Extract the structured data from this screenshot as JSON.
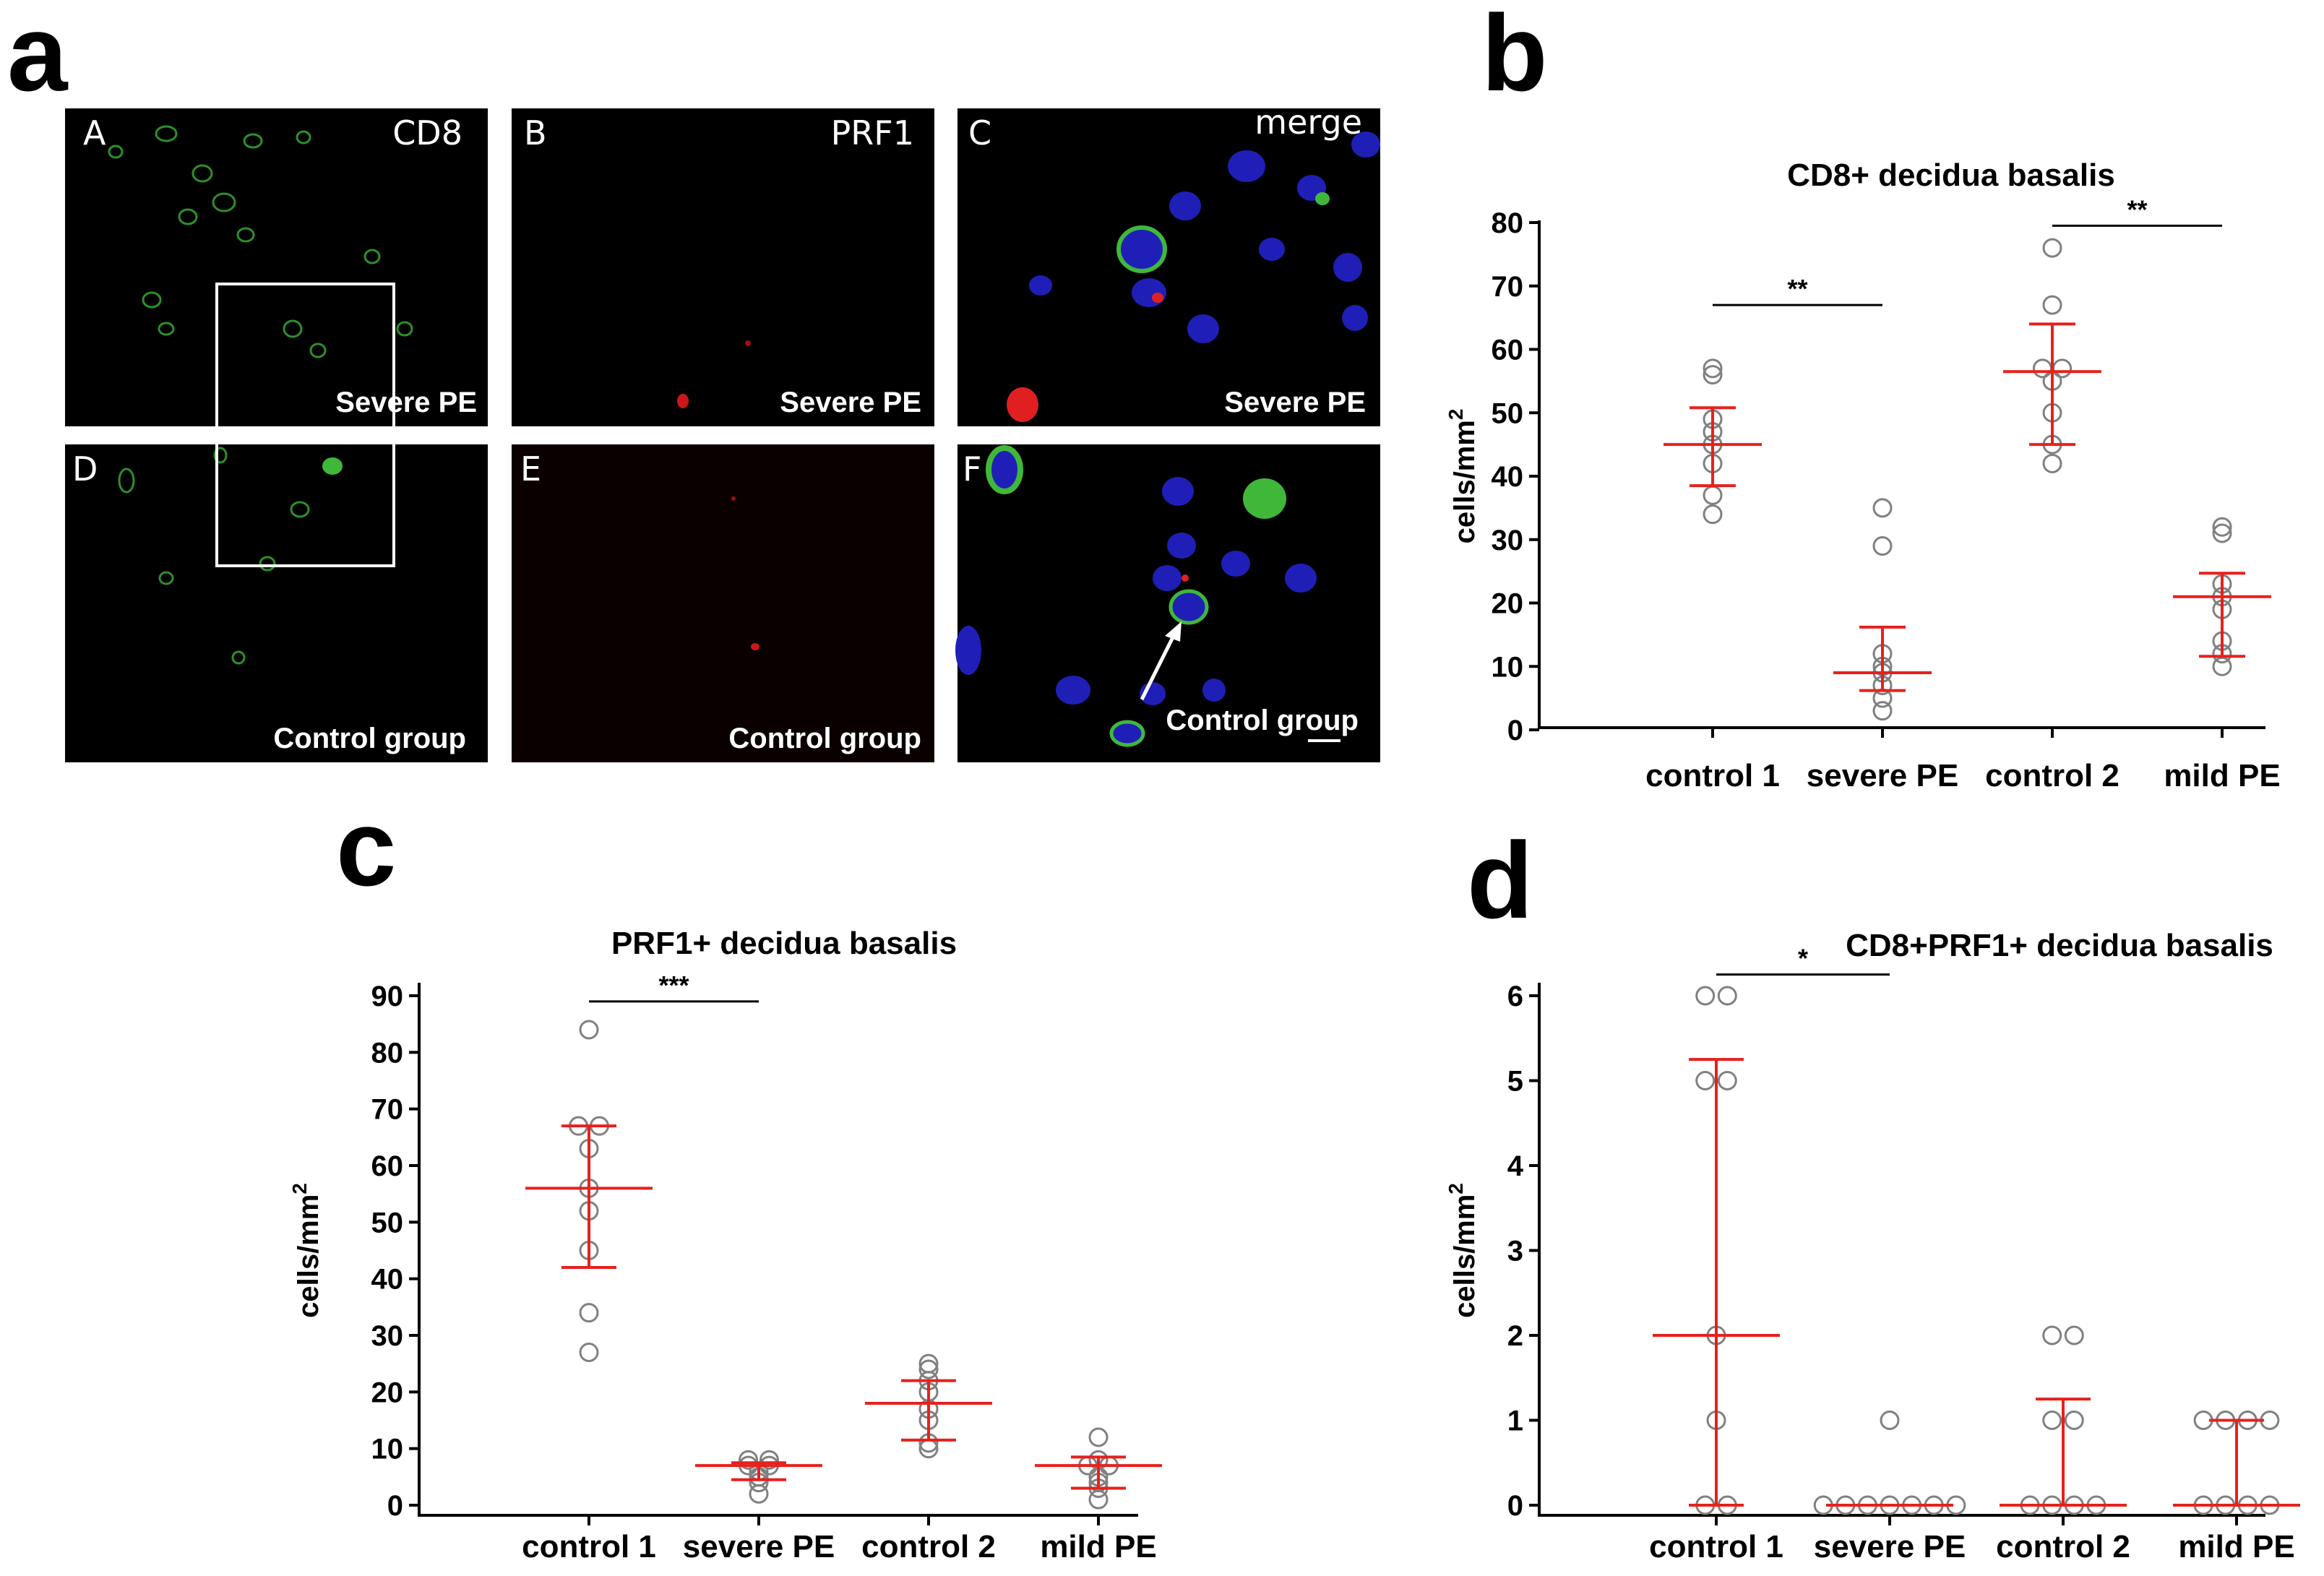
{
  "panel_letters": [
    "a",
    "b",
    "c",
    "d"
  ],
  "micrographs": [
    {
      "letter": "A",
      "stain": "CD8",
      "caption": "Severe PE"
    },
    {
      "letter": "B",
      "stain": "PRF1",
      "caption": "Severe PE"
    },
    {
      "letter": "C",
      "stain": "merge",
      "caption": "Severe PE"
    },
    {
      "letter": "D",
      "stain": "",
      "caption": "Control group"
    },
    {
      "letter": "E",
      "stain": "",
      "caption": "Control group"
    },
    {
      "letter": "F",
      "stain": "",
      "caption": "Control group"
    }
  ],
  "colors": {
    "mean_bar": "#e8201c",
    "points": "#808080",
    "cd8_green": "#3fb83a",
    "prf1_red": "#e02020",
    "nuclei_blue": "#1f1fb8"
  },
  "chart_data": [
    {
      "panel": "b",
      "type": "scatter",
      "title": "CD8+ decidua basalis",
      "ylabel": "cells/mm",
      "ylabel_superscript": "2",
      "categories": [
        "control 1",
        "severe PE",
        "control 2",
        "mild PE"
      ],
      "ylim": [
        0,
        80
      ],
      "yticks": [
        0,
        10,
        20,
        30,
        40,
        50,
        60,
        70,
        80
      ],
      "points": [
        [
          34,
          37,
          42,
          45,
          47,
          49,
          56,
          57
        ],
        [
          3,
          5,
          7,
          9,
          10,
          12,
          29,
          35
        ],
        [
          42,
          45,
          50,
          55,
          57,
          57,
          67,
          76
        ],
        [
          10,
          12,
          14,
          19,
          21,
          23,
          31,
          32
        ]
      ],
      "mean": [
        45,
        9,
        56.5,
        21
      ],
      "err_low": [
        38.5,
        6.2,
        45,
        11.6
      ],
      "err_high": [
        50.8,
        16.2,
        64,
        24.7
      ],
      "significance": [
        {
          "from": 0,
          "to": 1,
          "y": 67,
          "label": "**"
        },
        {
          "from": 2,
          "to": 3,
          "y": 79.5,
          "label": "**"
        }
      ]
    },
    {
      "panel": "c",
      "type": "scatter",
      "title": "PRF1+ decidua basalis",
      "ylabel": "cells/mm",
      "ylabel_superscript": "2",
      "categories": [
        "control 1",
        "severe PE",
        "control 2",
        "mild PE"
      ],
      "ylim": [
        0,
        90
      ],
      "yticks": [
        0,
        10,
        20,
        30,
        40,
        50,
        60,
        70,
        80,
        90
      ],
      "points": [
        [
          27,
          34,
          45,
          52,
          56,
          63,
          67,
          67,
          84
        ],
        [
          2,
          4,
          5,
          6,
          7,
          7,
          8,
          8
        ],
        [
          10,
          11,
          15,
          17,
          20,
          22,
          24,
          25
        ],
        [
          1,
          3,
          4,
          5,
          7,
          7,
          8,
          12
        ]
      ],
      "mean": [
        56,
        7,
        18,
        7
      ],
      "err_low": [
        42,
        4.5,
        11.5,
        3
      ],
      "err_high": [
        67,
        7.5,
        22,
        8.5
      ],
      "significance": [
        {
          "from": 0,
          "to": 1,
          "y": 89,
          "label": "***"
        }
      ]
    },
    {
      "panel": "d",
      "type": "scatter",
      "title": "CD8+PRF1+ decidua basalis",
      "ylabel": "cells/mm",
      "ylabel_superscript": "2",
      "categories": [
        "control 1",
        "severe PE",
        "control 2",
        "mild PE"
      ],
      "ylim": [
        0,
        6
      ],
      "yticks": [
        0,
        1,
        2,
        3,
        4,
        5,
        6
      ],
      "points": [
        [
          0,
          0,
          1,
          2,
          5,
          5,
          6,
          6
        ],
        [
          0,
          0,
          0,
          0,
          0,
          0,
          0,
          1
        ],
        [
          0,
          0,
          0,
          0,
          1,
          1,
          2,
          2
        ],
        [
          0,
          0,
          0,
          0,
          1,
          1,
          1,
          1
        ]
      ],
      "mean": [
        2,
        0,
        0,
        0
      ],
      "err_low": [
        0,
        0,
        0,
        0
      ],
      "err_high": [
        5.25,
        0,
        1.25,
        1
      ],
      "significance": [
        {
          "from": 0,
          "to": 1,
          "y": 6.25,
          "label": "*"
        }
      ]
    }
  ]
}
